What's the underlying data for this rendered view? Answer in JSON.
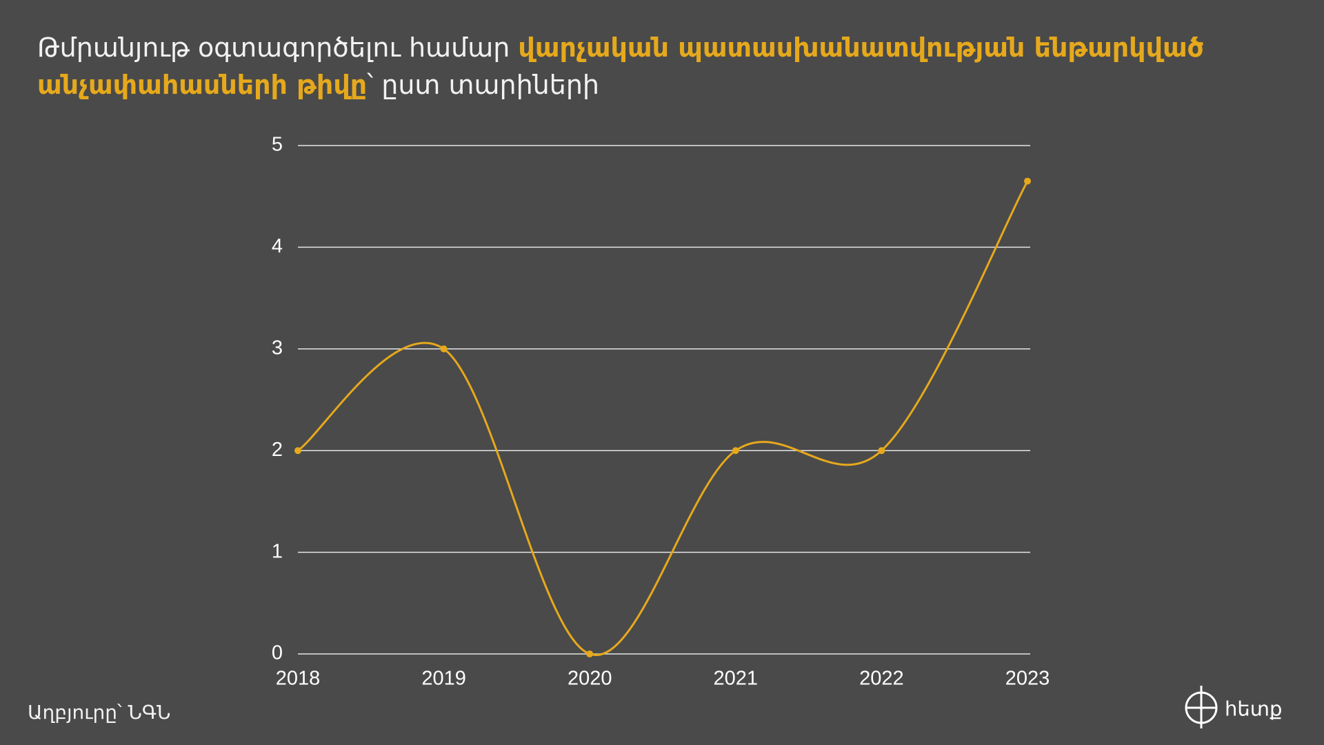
{
  "chart_data": {
    "type": "line",
    "title": {
      "parts": [
        "Թմրանյութ օգտագործելու համար",
        "վարչական պատասխանատվության ենթարկված անչափահասների թիվը",
        "՝ ըստ տարիների"
      ]
    },
    "categories": [
      "2018",
      "2019",
      "2020",
      "2021",
      "2022",
      "2023"
    ],
    "series": [
      {
        "color": "#e6a91c",
        "values": [
          2,
          3,
          0,
          2,
          2,
          4.65
        ]
      }
    ],
    "ylim": [
      0,
      5
    ],
    "yticks": [
      0,
      1,
      2,
      3,
      4,
      5
    ],
    "grid": true,
    "source": "Աղբյուրը՝ ՆԳՆ",
    "logo": "հետք"
  }
}
